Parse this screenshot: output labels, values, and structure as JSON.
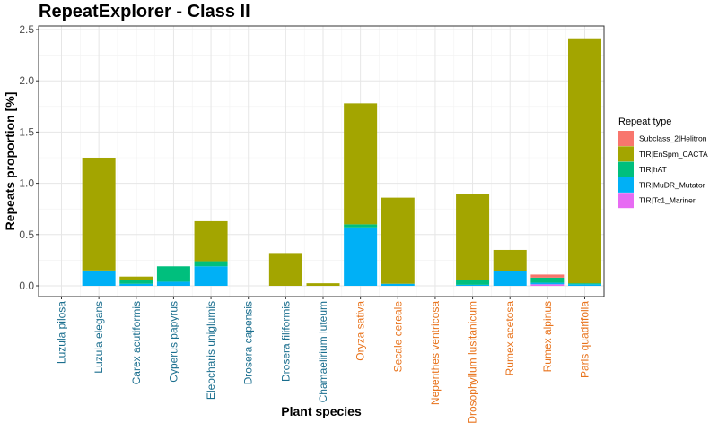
{
  "chart_data": {
    "type": "bar",
    "stacked": true,
    "title": "RepeatExplorer - Class II",
    "xlabel": "Plant species",
    "ylabel": "Repeats proportion [%]",
    "ylim": [
      0,
      2.5
    ],
    "yticks": [
      "0.0",
      "0.5",
      "1.0",
      "1.5",
      "2.0",
      "2.5"
    ],
    "grid": true,
    "legend_title": "Repeat type",
    "legend_position": "right",
    "category_colors": {
      "group1": "#1a6e8e",
      "group2": "#e8731c"
    },
    "categories": [
      {
        "name": "Luzula pilosa",
        "group": "group1"
      },
      {
        "name": "Luzula elegans",
        "group": "group1"
      },
      {
        "name": "Carex acutiformis",
        "group": "group1"
      },
      {
        "name": "Cyperus papyrus",
        "group": "group1"
      },
      {
        "name": "Eleocharis uniglumis",
        "group": "group1"
      },
      {
        "name": "Drosera capensis",
        "group": "group1"
      },
      {
        "name": "Drosera filiformis",
        "group": "group1"
      },
      {
        "name": "Chamaelirium luteum",
        "group": "group1"
      },
      {
        "name": "Oryza sativa",
        "group": "group2"
      },
      {
        "name": "Secale cereale",
        "group": "group2"
      },
      {
        "name": "Nepenthes ventricosa",
        "group": "group2"
      },
      {
        "name": "Drosophyllum lusitanicum",
        "group": "group2"
      },
      {
        "name": "Rumex acetosa",
        "group": "group2"
      },
      {
        "name": "Rumex alpinus",
        "group": "group2"
      },
      {
        "name": "Paris quadrifolia",
        "group": "group2"
      }
    ],
    "stack_order": [
      "TIR|Tc1_Mariner",
      "TIR|MuDR_Mutator",
      "TIR|hAT",
      "TIR|EnSpm_CACTA",
      "Subclass_2|Helitron"
    ],
    "series": [
      {
        "name": "Subclass_2|Helitron",
        "color": "#F8766D",
        "values": [
          0,
          0,
          0,
          0,
          0,
          0,
          0,
          0,
          0,
          0,
          0,
          0,
          0,
          0.03,
          0
        ]
      },
      {
        "name": "TIR|EnSpm_CACTA",
        "color": "#A3A500",
        "values": [
          0,
          1.1,
          0.03,
          0,
          0.39,
          0,
          0.32,
          0.025,
          1.18,
          0.84,
          0,
          0.84,
          0.21,
          0,
          2.39
        ]
      },
      {
        "name": "TIR|hAT",
        "color": "#00BF7D",
        "values": [
          0,
          0.005,
          0.04,
          0.15,
          0.05,
          0,
          0,
          0,
          0.03,
          0,
          0,
          0.05,
          0,
          0.05,
          0.01
        ]
      },
      {
        "name": "TIR|MuDR_Mutator",
        "color": "#00B0F6",
        "values": [
          0,
          0.145,
          0.02,
          0.04,
          0.19,
          0,
          0,
          0,
          0.57,
          0.02,
          0,
          0.01,
          0.14,
          0.015,
          0.015
        ]
      },
      {
        "name": "TIR|Tc1_Mariner",
        "color": "#E76BF3",
        "values": [
          0,
          0,
          0,
          0,
          0,
          0,
          0,
          0,
          0,
          0,
          0,
          0,
          0,
          0.015,
          0
        ]
      }
    ]
  }
}
